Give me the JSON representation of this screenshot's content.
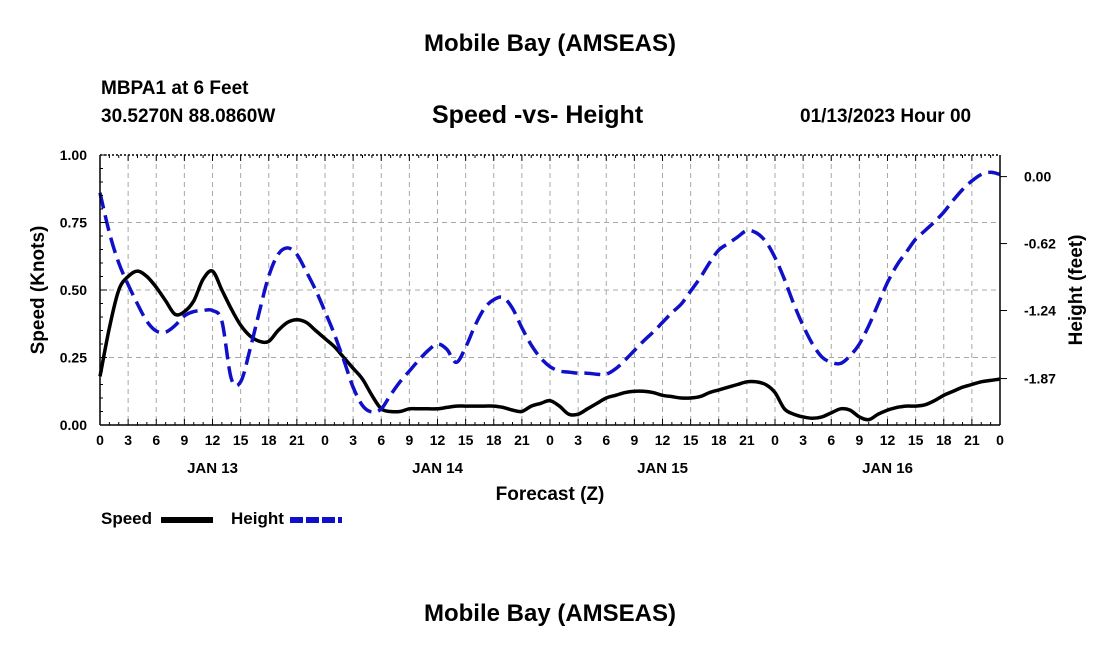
{
  "page": {
    "title_top": "Mobile Bay (AMSEAS)",
    "title_bottom": "Mobile Bay (AMSEAS)",
    "station": "MBPA1 at 6 Feet",
    "coords": "30.5270N  88.0860W",
    "subtitle": "Speed -vs- Height",
    "datetime": "01/13/2023 Hour 00"
  },
  "legend": {
    "speed_label": "Speed",
    "height_label": "Height"
  },
  "colors": {
    "speed": "#000000",
    "height": "#1010c8",
    "grid": "#a8a8a8"
  },
  "chart_data": {
    "type": "line",
    "xlabel": "Forecast (Z)",
    "ylabel_left": "Speed (Knots)",
    "ylabel_right": "Height (feet)",
    "x_range_hours": [
      0,
      96
    ],
    "ylim_left": [
      0,
      1
    ],
    "ylim_right": [
      -2.3,
      0.2
    ],
    "x_tick_labels": [
      "0",
      "3",
      "6",
      "9",
      "12",
      "15",
      "18",
      "21",
      "0",
      "3",
      "6",
      "9",
      "12",
      "15",
      "18",
      "21",
      "0",
      "3",
      "6",
      "9",
      "12",
      "15",
      "18",
      "21",
      "0",
      "3",
      "6",
      "9",
      "12",
      "15",
      "18",
      "21",
      "0"
    ],
    "date_labels": [
      {
        "label": "JAN 13",
        "hour": 12
      },
      {
        "label": "JAN 14",
        "hour": 36
      },
      {
        "label": "JAN 15",
        "hour": 60
      },
      {
        "label": "JAN 16",
        "hour": 84
      }
    ],
    "y_left_ticks": [
      {
        "value": 0,
        "label": "0.00"
      },
      {
        "value": 0.25,
        "label": "0.25"
      },
      {
        "value": 0.5,
        "label": "0.50"
      },
      {
        "value": 0.75,
        "label": "0.75"
      },
      {
        "value": 1,
        "label": "1.00"
      }
    ],
    "y_right_ticks": [
      {
        "value": 0.0,
        "label": "0.00"
      },
      {
        "value": -0.62,
        "label": "-0.62"
      },
      {
        "value": -1.24,
        "label": "-1.24"
      },
      {
        "value": -1.87,
        "label": "-1.87"
      }
    ],
    "series": [
      {
        "name": "Speed",
        "axis": "left",
        "style": "solid",
        "x": [
          0,
          1,
          2,
          3,
          4,
          5,
          6,
          7,
          8,
          9,
          10,
          11,
          12,
          13,
          14,
          15,
          16,
          17,
          18,
          19,
          20,
          21,
          22,
          23,
          24,
          25,
          26,
          27,
          28,
          29,
          30,
          31,
          32,
          33,
          34,
          35,
          36,
          37,
          38,
          39,
          40,
          41,
          42,
          43,
          44,
          45,
          46,
          47,
          48,
          49,
          50,
          51,
          52,
          53,
          54,
          55,
          56,
          57,
          58,
          59,
          60,
          61,
          62,
          63,
          64,
          65,
          66,
          67,
          68,
          69,
          70,
          71,
          72,
          73,
          74,
          75,
          76,
          77,
          78,
          79,
          80,
          81,
          82,
          83,
          84,
          85,
          86,
          87,
          88,
          89,
          90,
          91,
          92,
          93,
          94,
          95,
          96
        ],
        "values": [
          0.18,
          0.36,
          0.5,
          0.55,
          0.57,
          0.55,
          0.51,
          0.46,
          0.41,
          0.42,
          0.46,
          0.54,
          0.57,
          0.5,
          0.43,
          0.37,
          0.33,
          0.31,
          0.31,
          0.35,
          0.38,
          0.39,
          0.38,
          0.35,
          0.32,
          0.29,
          0.25,
          0.21,
          0.17,
          0.11,
          0.06,
          0.05,
          0.05,
          0.06,
          0.06,
          0.06,
          0.06,
          0.065,
          0.07,
          0.07,
          0.07,
          0.07,
          0.07,
          0.065,
          0.055,
          0.05,
          0.07,
          0.08,
          0.09,
          0.07,
          0.04,
          0.04,
          0.06,
          0.08,
          0.1,
          0.11,
          0.12,
          0.125,
          0.125,
          0.12,
          0.11,
          0.105,
          0.1,
          0.1,
          0.105,
          0.12,
          0.13,
          0.14,
          0.15,
          0.16,
          0.16,
          0.15,
          0.12,
          0.06,
          0.04,
          0.03,
          0.025,
          0.03,
          0.045,
          0.06,
          0.055,
          0.03,
          0.02,
          0.04,
          0.055,
          0.065,
          0.07,
          0.07,
          0.075,
          0.09,
          0.11,
          0.125,
          0.14,
          0.15,
          0.16,
          0.165,
          0.17
        ]
      },
      {
        "name": "Height",
        "axis": "right",
        "style": "dashed",
        "x": [
          0,
          1,
          2,
          3,
          4,
          5,
          6,
          7,
          8,
          9,
          10,
          11,
          12,
          13,
          14,
          15,
          16,
          17,
          18,
          19,
          20,
          21,
          22,
          23,
          24,
          25,
          26,
          27,
          28,
          29,
          30,
          31,
          32,
          33,
          34,
          35,
          36,
          37,
          38,
          39,
          40,
          41,
          42,
          43,
          44,
          45,
          46,
          47,
          48,
          49,
          50,
          51,
          52,
          53,
          54,
          55,
          56,
          57,
          58,
          59,
          60,
          61,
          62,
          63,
          64,
          65,
          66,
          67,
          68,
          69,
          70,
          71,
          72,
          73,
          74,
          75,
          76,
          77,
          78,
          79,
          80,
          81,
          82,
          83,
          84,
          85,
          86,
          87,
          88,
          89,
          90,
          91,
          92,
          93,
          94,
          95,
          96
        ],
        "values": [
          -0.15,
          -0.52,
          -0.8,
          -1.0,
          -1.18,
          -1.34,
          -1.43,
          -1.44,
          -1.38,
          -1.29,
          -1.25,
          -1.24,
          -1.24,
          -1.34,
          -1.87,
          -1.9,
          -1.6,
          -1.25,
          -0.92,
          -0.72,
          -0.66,
          -0.72,
          -0.88,
          -1.05,
          -1.25,
          -1.46,
          -1.7,
          -1.95,
          -2.12,
          -2.18,
          -2.15,
          -2.02,
          -1.9,
          -1.8,
          -1.7,
          -1.61,
          -1.55,
          -1.6,
          -1.72,
          -1.58,
          -1.38,
          -1.22,
          -1.14,
          -1.12,
          -1.22,
          -1.4,
          -1.56,
          -1.68,
          -1.76,
          -1.8,
          -1.81,
          -1.82,
          -1.82,
          -1.83,
          -1.83,
          -1.78,
          -1.7,
          -1.61,
          -1.52,
          -1.44,
          -1.35,
          -1.26,
          -1.18,
          -1.06,
          -0.94,
          -0.8,
          -0.68,
          -0.62,
          -0.56,
          -0.5,
          -0.52,
          -0.6,
          -0.75,
          -0.95,
          -1.18,
          -1.38,
          -1.55,
          -1.67,
          -1.72,
          -1.73,
          -1.66,
          -1.55,
          -1.38,
          -1.18,
          -0.98,
          -0.82,
          -0.7,
          -0.58,
          -0.5,
          -0.42,
          -0.33,
          -0.22,
          -0.12,
          -0.04,
          0.02,
          0.04,
          0.02
        ]
      }
    ]
  }
}
